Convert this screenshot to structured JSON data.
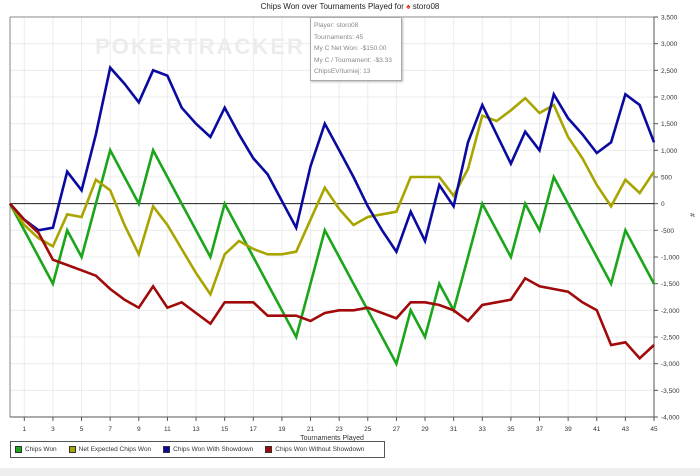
{
  "chart_data": {
    "type": "line",
    "title": "Chips Won over Tournaments Played for",
    "title_player": "storo08",
    "xlabel": "Tournaments Played",
    "ylabel": "#",
    "xlim": [
      0,
      45
    ],
    "ylim": [
      -4000,
      3500
    ],
    "xticks": [
      1,
      3,
      5,
      7,
      9,
      11,
      13,
      15,
      17,
      19,
      21,
      23,
      25,
      27,
      29,
      31,
      33,
      35,
      37,
      39,
      41,
      43,
      45
    ],
    "yticks": [
      3500,
      3000,
      2500,
      2000,
      1500,
      1000,
      500,
      0,
      -500,
      -1000,
      -1500,
      -2000,
      -2500,
      -3000,
      -3500,
      -4000
    ],
    "ytick_labels": [
      "3,500",
      "3,000",
      "2,500",
      "2,000",
      "1,500",
      "1,000",
      "500",
      "0",
      "-500",
      "-1,000",
      "-1,500",
      "-2,000",
      "-2,500",
      "-3,000",
      "-3,500",
      "-4,000"
    ],
    "grid": true,
    "legend_position": "bottom-left",
    "x": [
      0,
      1,
      2,
      3,
      4,
      5,
      6,
      7,
      8,
      9,
      10,
      11,
      12,
      13,
      14,
      15,
      16,
      17,
      18,
      19,
      20,
      21,
      22,
      23,
      24,
      25,
      26,
      27,
      28,
      29,
      30,
      31,
      32,
      33,
      34,
      35,
      36,
      37,
      38,
      39,
      40,
      41,
      42,
      43,
      44,
      45
    ],
    "series": [
      {
        "name": "Chips Won",
        "color": "#1aa51a",
        "values": [
          0,
          -500,
          -1000,
          -1500,
          -500,
          -1000,
          0,
          1000,
          500,
          0,
          1000,
          500,
          0,
          -500,
          -1000,
          0,
          -500,
          -1000,
          -1500,
          -2000,
          -2500,
          -1500,
          -500,
          -1000,
          -1500,
          -2000,
          -2500,
          -3000,
          -2000,
          -2500,
          -1500,
          -2000,
          -1000,
          0,
          -500,
          -1000,
          0,
          -500,
          500,
          0,
          -500,
          -1000,
          -1500,
          -500,
          -1000,
          -1500
        ]
      },
      {
        "name": "Net Expected Chips Won",
        "color": "#a8a500",
        "values": [
          0,
          -400,
          -650,
          -800,
          -200,
          -250,
          450,
          250,
          -400,
          -950,
          -50,
          -400,
          -850,
          -1300,
          -1700,
          -950,
          -700,
          -850,
          -950,
          -950,
          -900,
          -300,
          300,
          -100,
          -400,
          -250,
          -200,
          -150,
          500,
          500,
          500,
          150,
          650,
          1650,
          1550,
          1750,
          1980,
          1700,
          1850,
          1250,
          850,
          350,
          -50,
          450,
          200,
          600
        ]
      },
      {
        "name": "Chips Won With Showdown",
        "color": "#0a0aa0",
        "values": [
          0,
          -300,
          -500,
          -450,
          600,
          250,
          1300,
          2550,
          2250,
          1900,
          2500,
          2400,
          1800,
          1500,
          1250,
          1800,
          1300,
          850,
          550,
          50,
          -450,
          700,
          1500,
          1000,
          500,
          -50,
          -500,
          -900,
          -150,
          -700,
          350,
          -50,
          1150,
          1850,
          1300,
          750,
          1350,
          1000,
          2050,
          1600,
          1300,
          950,
          1150,
          2050,
          1850,
          1150
        ]
      },
      {
        "name": "Chips Won Without Showdown",
        "color": "#a00a0a",
        "values": [
          0,
          -300,
          -550,
          -1050,
          -1150,
          -1250,
          -1350,
          -1600,
          -1800,
          -1950,
          -1550,
          -1950,
          -1850,
          -2050,
          -2250,
          -1850,
          -1850,
          -1850,
          -2100,
          -2100,
          -2100,
          -2200,
          -2050,
          -2000,
          -2000,
          -1950,
          -2050,
          -2150,
          -1850,
          -1850,
          -1900,
          -2000,
          -2200,
          -1900,
          -1850,
          -1800,
          -1400,
          -1550,
          -1600,
          -1650,
          -1850,
          -2000,
          -2650,
          -2600,
          -2900,
          -2650
        ]
      }
    ]
  },
  "tooltip": {
    "player": "Player: storo08",
    "tournaments": "Tournaments: 45",
    "net_won": "My C Net Won: -$150.00",
    "per_tournament": "My C / Tournament: -$3.33",
    "chips_ev": "ChipsEV/turniej: 13"
  },
  "watermark": "POKERTRACKER",
  "colors": {
    "grid": "#ececec",
    "axis": "#666666",
    "logo": "#e0301e"
  }
}
